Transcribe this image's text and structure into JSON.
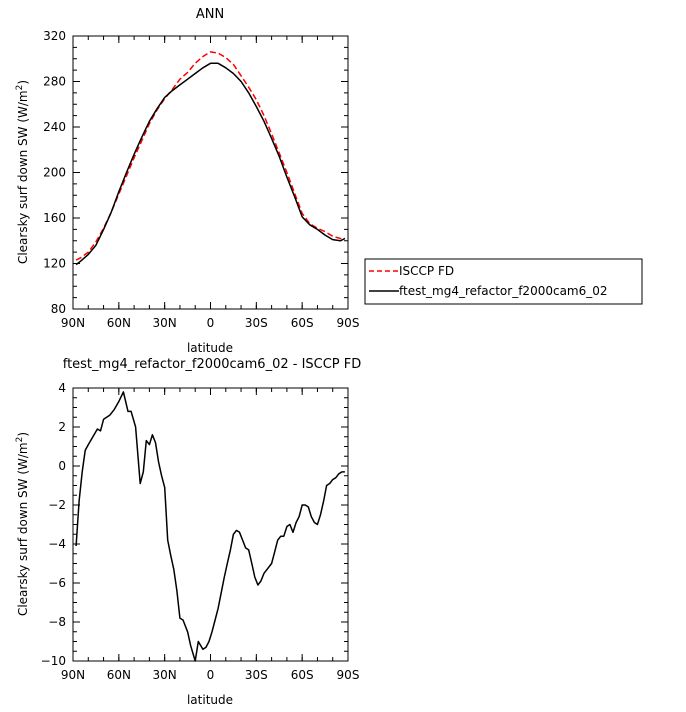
{
  "chart_data": [
    {
      "type": "line",
      "title": "ANN",
      "xlabel": "latitude",
      "ylabel": "Clearsky surf down SW (W/m",
      "ylabel_sup": "2",
      "ylabel_tail": ")",
      "xlim": [
        90,
        -90
      ],
      "ylim": [
        80,
        320
      ],
      "x_ticks": [
        90,
        60,
        30,
        0,
        -30,
        -60,
        -90
      ],
      "x_tick_labels": [
        "90N",
        "60N",
        "30N",
        "0",
        "30S",
        "60S",
        "90S"
      ],
      "y_ticks": [
        80,
        120,
        160,
        200,
        240,
        280,
        320
      ],
      "y_tick_labels": [
        "80",
        "120",
        "160",
        "200",
        "240",
        "280",
        "320"
      ],
      "legend_position": "right",
      "series": [
        {
          "name": "ISCCP FD",
          "color": "#ff0000",
          "dash": "dashed",
          "x": [
            88,
            85,
            80,
            75,
            70,
            65,
            60,
            55,
            50,
            45,
            40,
            35,
            30,
            25,
            20,
            15,
            10,
            5,
            0,
            -5,
            -10,
            -15,
            -20,
            -25,
            -30,
            -35,
            -40,
            -45,
            -50,
            -55,
            -60,
            -65,
            -70,
            -75,
            -80,
            -85,
            -88
          ],
          "y": [
            123,
            125,
            130,
            139,
            151,
            165,
            181,
            197,
            213,
            228,
            243,
            255,
            265,
            273,
            282,
            288,
            296,
            302,
            306,
            305,
            301,
            295,
            285,
            275,
            264,
            250,
            234,
            217,
            200,
            182,
            164,
            155,
            151,
            148,
            144,
            142,
            142
          ]
        },
        {
          "name": "ftest_mg4_refactor_f2000cam6_02",
          "color": "#000000",
          "dash": "solid",
          "x": [
            88,
            85,
            80,
            75,
            70,
            65,
            60,
            55,
            50,
            45,
            40,
            35,
            30,
            25,
            20,
            15,
            10,
            5,
            0,
            -5,
            -10,
            -15,
            -20,
            -25,
            -30,
            -35,
            -40,
            -45,
            -50,
            -55,
            -60,
            -65,
            -70,
            -75,
            -80,
            -85,
            -88
          ],
          "y": [
            119,
            122,
            128,
            136,
            150,
            165,
            183,
            200,
            216,
            231,
            245,
            256,
            266,
            272,
            277,
            282,
            287,
            292,
            296,
            296,
            292,
            287,
            280,
            270,
            258,
            245,
            230,
            214,
            196,
            179,
            161,
            154,
            150,
            145,
            141,
            140,
            142
          ]
        }
      ]
    },
    {
      "type": "line",
      "title": "ftest_mg4_refactor_f2000cam6_02 - ISCCP FD",
      "xlabel": "latitude",
      "ylabel": "Clearsky surf down SW (W/m",
      "ylabel_sup": "2",
      "ylabel_tail": ")",
      "xlim": [
        90,
        -90
      ],
      "ylim": [
        -10,
        4
      ],
      "x_ticks": [
        90,
        60,
        30,
        0,
        -30,
        -60,
        -90
      ],
      "x_tick_labels": [
        "90N",
        "60N",
        "30N",
        "0",
        "30S",
        "60S",
        "90S"
      ],
      "y_ticks": [
        -10,
        -8,
        -6,
        -4,
        -2,
        0,
        2,
        4
      ],
      "y_tick_labels": [
        "−10",
        "−8",
        "−6",
        "−4",
        "−2",
        "0",
        "2",
        "4"
      ],
      "series": [
        {
          "color": "#000000",
          "dash": "solid",
          "x": [
            88,
            86,
            84,
            82,
            80,
            77,
            74,
            72,
            70,
            68,
            66,
            63,
            60,
            57,
            54,
            52,
            49,
            46,
            44,
            42,
            40,
            38,
            36,
            34,
            32,
            30,
            28,
            26,
            24,
            22,
            20,
            18,
            15,
            13,
            10,
            8,
            5,
            3,
            1,
            -1,
            -3,
            -5,
            -7,
            -9,
            -11,
            -13,
            -15,
            -17,
            -19,
            -21,
            -23,
            -25,
            -27,
            -29,
            -31,
            -33,
            -35,
            -37,
            -40,
            -42,
            -44,
            -46,
            -48,
            -50,
            -52,
            -54,
            -56,
            -58,
            -60,
            -62,
            -64,
            -66,
            -68,
            -70,
            -72,
            -74,
            -76,
            -78,
            -80,
            -82,
            -84,
            -86,
            -88
          ],
          "y": [
            -4.1,
            -1.8,
            -0.3,
            0.8,
            1.1,
            1.5,
            1.9,
            1.8,
            2.4,
            2.5,
            2.6,
            2.9,
            3.3,
            3.8,
            2.8,
            2.8,
            2.0,
            -0.9,
            -0.3,
            1.3,
            1.1,
            1.6,
            1.2,
            0.2,
            -0.5,
            -1.1,
            -3.8,
            -4.6,
            -5.3,
            -6.4,
            -7.8,
            -7.9,
            -8.5,
            -9.2,
            -10.0,
            -9.0,
            -9.4,
            -9.3,
            -9.0,
            -8.5,
            -7.9,
            -7.3,
            -6.5,
            -5.7,
            -5.0,
            -4.3,
            -3.5,
            -3.3,
            -3.4,
            -3.8,
            -4.2,
            -4.3,
            -5.0,
            -5.7,
            -6.1,
            -5.9,
            -5.5,
            -5.3,
            -5.0,
            -4.4,
            -3.8,
            -3.6,
            -3.6,
            -3.1,
            -3.0,
            -3.4,
            -2.9,
            -2.6,
            -2.0,
            -2.0,
            -2.1,
            -2.6,
            -2.9,
            -3.0,
            -2.5,
            -1.8,
            -1.0,
            -0.9,
            -0.7,
            -0.6,
            -0.4,
            -0.3,
            -0.3
          ]
        }
      ]
    }
  ]
}
